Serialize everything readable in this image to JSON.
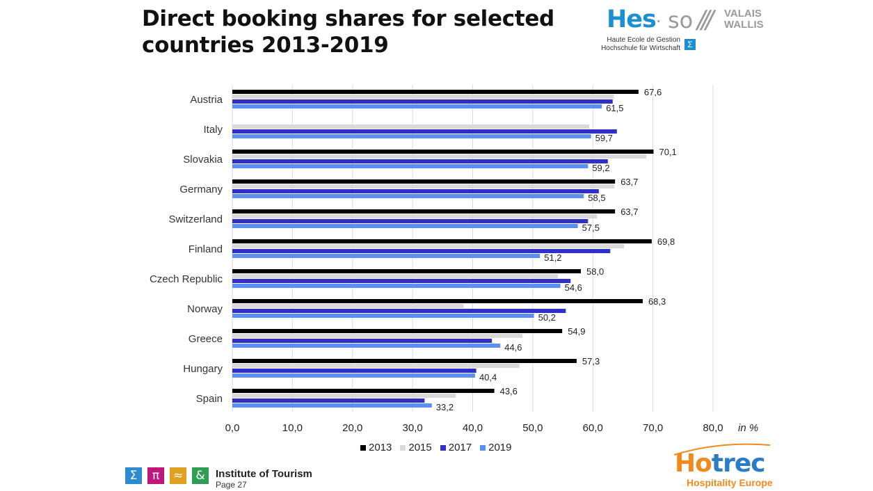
{
  "title": {
    "line1": "Direct booking shares for selected",
    "line2": "countries 2013-2019"
  },
  "logo_hes": {
    "main": "Hes",
    "dot": "·",
    "so": "so",
    "slashes": "///",
    "region1": "VALAIS",
    "region2": "WALLIS",
    "sub1": "Haute Ecole de Gestion",
    "sub2": "Hochschule für Wirtschaft",
    "sigma": "Σ"
  },
  "chart_data": {
    "type": "bar",
    "orientation": "horizontal",
    "categories": [
      "Austria",
      "Italy",
      "Slovakia",
      "Germany",
      "Switzerland",
      "Finland",
      "Czech Republic",
      "Norway",
      "Greece",
      "Hungary",
      "Spain"
    ],
    "series": [
      {
        "name": "2013",
        "color": "#000000",
        "values": [
          67.6,
          null,
          70.1,
          63.7,
          63.7,
          69.8,
          58.0,
          68.3,
          54.9,
          57.3,
          43.6
        ]
      },
      {
        "name": "2015",
        "color": "#d9d9d9",
        "values": [
          63.5,
          59.4,
          68.9,
          63.6,
          60.7,
          65.2,
          54.2,
          38.5,
          48.3,
          47.8,
          37.2
        ]
      },
      {
        "name": "2017",
        "color": "#3030c8",
        "values": [
          63.3,
          64.0,
          62.5,
          61.0,
          59.2,
          62.9,
          56.3,
          55.5,
          43.2,
          40.6,
          32.0
        ]
      },
      {
        "name": "2019",
        "color": "#5b8ff0",
        "values": [
          61.5,
          59.7,
          59.2,
          58.5,
          57.5,
          51.2,
          54.6,
          50.2,
          44.6,
          40.4,
          33.2
        ]
      }
    ],
    "labels_2013": [
      "67,6",
      "",
      "70,1",
      "63,7",
      "63,7",
      "69,8",
      "58,0",
      "68,3",
      "54,9",
      "57,3",
      "43,6"
    ],
    "labels_2019": [
      "61,5",
      "59,7",
      "59,2",
      "58,5",
      "57,5",
      "51,2",
      "54,6",
      "50,2",
      "44,6",
      "40,4",
      "33,2"
    ],
    "xticks": [
      "0,0",
      "10,0",
      "20,0",
      "30,0",
      "40,0",
      "50,0",
      "60,0",
      "70,0",
      "80,0"
    ],
    "xlim": [
      0,
      80
    ],
    "xunit": "in %",
    "grid": true,
    "legend_position": "bottom"
  },
  "legend": [
    {
      "label": "2013",
      "color": "#000000"
    },
    {
      "label": "2015",
      "color": "#d9d9d9"
    },
    {
      "label": "2017",
      "color": "#3030c8"
    },
    {
      "label": "2019",
      "color": "#5b8ff0"
    }
  ],
  "footer": {
    "tiles": [
      {
        "glyph": "Σ",
        "color": "#2e8bd0"
      },
      {
        "glyph": "π",
        "color": "#c0177a"
      },
      {
        "glyph": "≈",
        "color": "#e0a020"
      },
      {
        "glyph": "&",
        "color": "#2f9e52"
      }
    ],
    "institute": "Institute of Tourism",
    "page": "Page 27"
  },
  "logo_hotrec": {
    "ho": "Ho",
    "trec": "trec",
    "tagline": "Hospitality Europe"
  }
}
